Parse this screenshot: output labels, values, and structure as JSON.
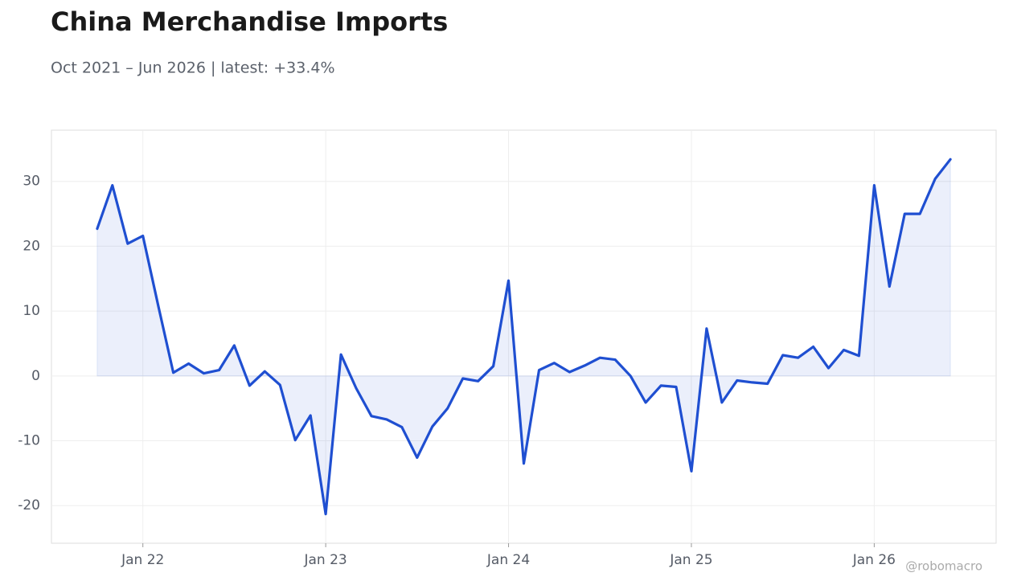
{
  "chart_data": {
    "type": "line",
    "title": "China Merchandise Imports",
    "subtitle": "Oct 2021 – Jun 2026 | latest: +33.4%",
    "watermark": "@robomacro",
    "x": [
      "2021-10",
      "2021-11",
      "2021-12",
      "2022-01",
      "2022-02",
      "2022-03",
      "2022-04",
      "2022-05",
      "2022-06",
      "2022-07",
      "2022-08",
      "2022-09",
      "2022-10",
      "2022-11",
      "2022-12",
      "2023-01",
      "2023-02",
      "2023-03",
      "2023-04",
      "2023-05",
      "2023-06",
      "2023-07",
      "2023-08",
      "2023-09",
      "2023-10",
      "2023-11",
      "2023-12",
      "2024-01",
      "2024-02",
      "2024-03",
      "2024-04",
      "2024-05",
      "2024-06",
      "2024-07",
      "2024-08",
      "2024-09",
      "2024-10",
      "2024-11",
      "2024-12",
      "2025-01",
      "2025-02",
      "2025-03",
      "2025-04",
      "2025-05",
      "2025-06",
      "2025-07",
      "2025-08",
      "2025-09",
      "2025-10",
      "2025-11",
      "2025-12",
      "2026-01",
      "2026-02",
      "2026-03",
      "2026-04",
      "2026-05",
      "2026-06"
    ],
    "series": [
      {
        "color": "#1f4fd1",
        "values": [
          22.7,
          29.4,
          20.4,
          21.6,
          10.9,
          0.5,
          1.9,
          0.4,
          0.9,
          4.7,
          -1.5,
          0.7,
          -1.4,
          -9.9,
          -6.1,
          -21.3,
          3.3,
          -1.9,
          -6.2,
          -6.7,
          -7.9,
          -12.6,
          -7.8,
          -5.0,
          -0.4,
          -0.8,
          1.5,
          14.7,
          -13.5,
          0.9,
          2.0,
          0.6,
          1.6,
          2.8,
          2.5,
          0.0,
          -4.1,
          -1.5,
          -1.7,
          -14.7,
          7.3,
          -4.1,
          -0.7,
          -1.0,
          -1.2,
          3.2,
          2.8,
          4.5,
          1.2,
          4.0,
          3.1,
          29.4,
          13.8,
          25.0,
          25.0,
          30.4,
          33.4
        ]
      }
    ],
    "xlim": [
      "2021-07",
      "2026-09"
    ],
    "xticks": [
      {
        "value": "2022-01",
        "label": "Jan 22"
      },
      {
        "value": "2023-01",
        "label": "Jan 23"
      },
      {
        "value": "2024-01",
        "label": "Jan 24"
      },
      {
        "value": "2025-01",
        "label": "Jan 25"
      },
      {
        "value": "2026-01",
        "label": "Jan 26"
      }
    ],
    "ylim": [
      -25.8,
      37.9
    ],
    "yticks": [
      -20,
      -10,
      0,
      10,
      20,
      30
    ],
    "grid": true,
    "fill": true
  }
}
